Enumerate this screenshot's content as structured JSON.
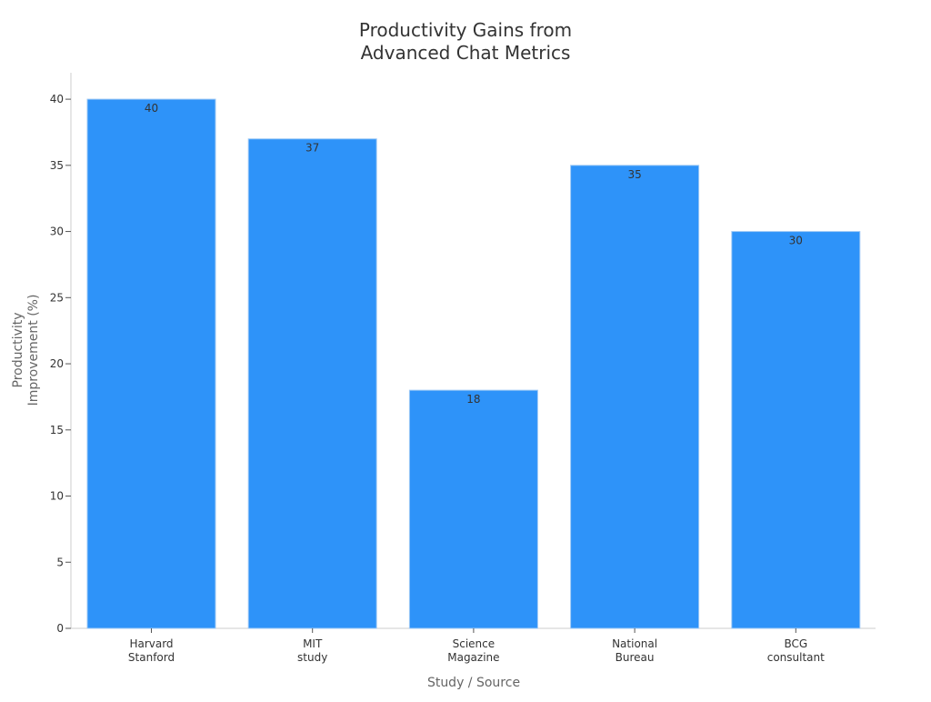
{
  "chart_data": {
    "type": "bar",
    "title_lines": [
      "Productivity Gains from",
      "Advanced Chat Metrics"
    ],
    "xlabel": "Study / Source",
    "ylabel_lines": [
      "Productivity",
      "Improvement (%)"
    ],
    "categories": [
      [
        "Harvard",
        "Stanford"
      ],
      [
        "MIT",
        "study"
      ],
      [
        "Science",
        "Magazine"
      ],
      [
        "National",
        "Bureau"
      ],
      [
        "BCG",
        "consultant"
      ]
    ],
    "values": [
      40,
      37,
      18,
      35,
      30
    ],
    "ylim": [
      0,
      42
    ],
    "yticks": [
      0,
      5,
      10,
      15,
      20,
      25,
      30,
      35,
      40
    ],
    "grid": false,
    "legend": "none",
    "colors": {
      "bar": "#2E93F9",
      "bar_edge": "#9ec9f5",
      "axis": "#cccccc",
      "tick_text": "#333333",
      "label_text": "#666666",
      "title_text": "#333333",
      "value_text": "#333333"
    }
  }
}
